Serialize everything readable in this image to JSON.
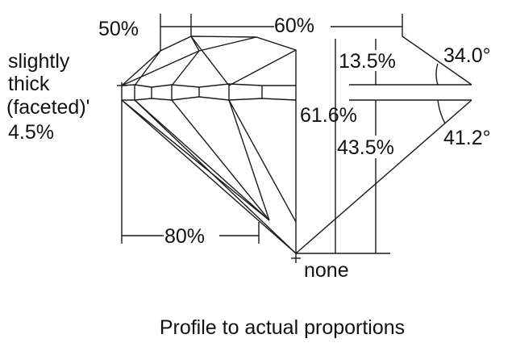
{
  "labels": {
    "crown_height_pct": "50%",
    "table_pct": "60%",
    "crown_depth_pct": "13.5%",
    "crown_angle": "34.0°",
    "total_depth_pct": "61.6%",
    "pavilion_depth_pct": "43.5%",
    "pavilion_angle": "41.2°",
    "lower_half_pct": "80%",
    "culet": "none",
    "girdle_line1": "slightly",
    "girdle_line2": "thick",
    "girdle_line3": "(faceted)'",
    "girdle_line4": "4.5%"
  },
  "caption": "Profile to actual proportions"
}
